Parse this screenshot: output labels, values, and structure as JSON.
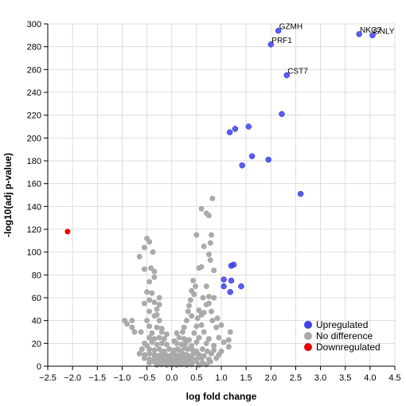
{
  "chart_data": {
    "type": "scatter",
    "xlabel": "log fold change",
    "ylabel": "-log10(adj p-value)",
    "xlim": [
      -2.5,
      4.5
    ],
    "ylim": [
      0,
      300
    ],
    "x_ticks": [
      "−2.5",
      "−2.0",
      "−1.5",
      "−1.0",
      "−0.5",
      "0.0",
      "0.5",
      "1.0",
      "1.5",
      "2.0",
      "2.5",
      "3.0",
      "3.5",
      "4.0",
      "4.5"
    ],
    "y_ticks": [
      "0",
      "20",
      "40",
      "60",
      "80",
      "100",
      "120",
      "140",
      "160",
      "180",
      "200",
      "220",
      "240",
      "260",
      "280",
      "300"
    ],
    "grid": true,
    "legend_position": "bottom-right",
    "colors": {
      "upregulated": "#4040ee",
      "no_difference": "#aaaaaa",
      "downregulated": "#ee0000"
    },
    "series": [
      {
        "name": "Upregulated",
        "color_key": "upregulated",
        "points": [
          [
            2.15,
            294
          ],
          [
            2.0,
            282
          ],
          [
            3.78,
            291
          ],
          [
            4.05,
            290
          ],
          [
            2.32,
            255
          ],
          [
            2.22,
            221
          ],
          [
            1.55,
            210
          ],
          [
            1.28,
            208
          ],
          [
            1.17,
            205
          ],
          [
            1.62,
            184
          ],
          [
            1.95,
            181
          ],
          [
            1.42,
            176
          ],
          [
            2.6,
            151
          ],
          [
            1.2,
            88
          ],
          [
            1.25,
            89
          ],
          [
            1.05,
            76
          ],
          [
            1.2,
            75
          ],
          [
            1.05,
            70
          ],
          [
            1.4,
            70
          ],
          [
            1.18,
            65
          ]
        ]
      },
      {
        "name": "No difference",
        "color_key": "no_difference",
        "points": [
          [
            0.82,
            147
          ],
          [
            0.6,
            138
          ],
          [
            0.7,
            134
          ],
          [
            0.75,
            132
          ],
          [
            -0.5,
            112
          ],
          [
            -0.45,
            109
          ],
          [
            0.5,
            115
          ],
          [
            0.8,
            115
          ],
          [
            -0.55,
            104
          ],
          [
            0.78,
            108
          ],
          [
            0.65,
            105
          ],
          [
            -0.38,
            100
          ],
          [
            -0.65,
            96
          ],
          [
            0.75,
            98
          ],
          [
            0.78,
            93
          ],
          [
            -0.42,
            86
          ],
          [
            -0.55,
            85
          ],
          [
            -0.35,
            83
          ],
          [
            0.6,
            87
          ],
          [
            0.55,
            86
          ],
          [
            0.85,
            84
          ],
          [
            -0.35,
            78
          ],
          [
            -0.45,
            74
          ],
          [
            0.43,
            75
          ],
          [
            0.48,
            70
          ],
          [
            0.7,
            70
          ],
          [
            0.4,
            66
          ],
          [
            -0.5,
            65
          ],
          [
            -0.4,
            64
          ],
          [
            0.45,
            63
          ],
          [
            -0.25,
            60
          ],
          [
            -0.45,
            58
          ],
          [
            0.63,
            60
          ],
          [
            0.75,
            61
          ],
          [
            0.85,
            60
          ],
          [
            0.38,
            58
          ],
          [
            -0.55,
            55
          ],
          [
            -0.35,
            56
          ],
          [
            -0.25,
            54
          ],
          [
            0.35,
            53
          ],
          [
            0.7,
            54
          ],
          [
            0.75,
            55
          ],
          [
            -0.3,
            50
          ],
          [
            -0.45,
            48
          ],
          [
            0.33,
            48
          ],
          [
            0.55,
            49
          ],
          [
            0.65,
            47
          ],
          [
            0.8,
            48
          ],
          [
            -0.35,
            44
          ],
          [
            -0.3,
            45
          ],
          [
            0.4,
            44
          ],
          [
            0.6,
            45
          ],
          [
            -0.8,
            40
          ],
          [
            -0.95,
            40
          ],
          [
            -0.9,
            37
          ],
          [
            -0.5,
            40
          ],
          [
            -0.25,
            40
          ],
          [
            0.3,
            40
          ],
          [
            0.52,
            42
          ],
          [
            0.82,
            40
          ],
          [
            0.92,
            42
          ],
          [
            -0.8,
            34
          ],
          [
            -0.45,
            35
          ],
          [
            -0.3,
            34
          ],
          [
            -0.2,
            33
          ],
          [
            0.25,
            34
          ],
          [
            0.5,
            35
          ],
          [
            0.6,
            36
          ],
          [
            0.9,
            34
          ],
          [
            1.0,
            36
          ],
          [
            -0.75,
            30
          ],
          [
            -0.62,
            30
          ],
          [
            -0.4,
            29
          ],
          [
            -0.2,
            30
          ],
          [
            -0.1,
            28
          ],
          [
            0.1,
            29
          ],
          [
            0.22,
            30
          ],
          [
            0.45,
            29
          ],
          [
            0.65,
            30
          ],
          [
            1.18,
            30
          ],
          [
            -0.45,
            25
          ],
          [
            -0.35,
            24
          ],
          [
            -0.25,
            25
          ],
          [
            -0.15,
            24
          ],
          [
            0.15,
            25
          ],
          [
            0.25,
            24
          ],
          [
            0.35,
            23
          ],
          [
            0.55,
            25
          ],
          [
            0.75,
            24
          ],
          [
            0.95,
            25
          ],
          [
            1.15,
            23
          ],
          [
            -0.55,
            20
          ],
          [
            -0.5,
            18
          ],
          [
            -0.4,
            21
          ],
          [
            -0.3,
            19
          ],
          [
            -0.2,
            20
          ],
          [
            -0.1,
            19
          ],
          [
            0.05,
            22
          ],
          [
            0.1,
            20
          ],
          [
            0.2,
            19
          ],
          [
            0.28,
            20
          ],
          [
            0.4,
            18
          ],
          [
            0.5,
            21
          ],
          [
            0.7,
            20
          ],
          [
            0.85,
            18
          ],
          [
            1.05,
            21
          ],
          [
            1.15,
            17
          ],
          [
            -0.6,
            15
          ],
          [
            -0.45,
            15
          ],
          [
            -0.35,
            14
          ],
          [
            -0.25,
            15
          ],
          [
            -0.15,
            13
          ],
          [
            -0.05,
            15
          ],
          [
            0.05,
            14
          ],
          [
            0.12,
            15
          ],
          [
            0.18,
            13
          ],
          [
            0.25,
            16
          ],
          [
            0.32,
            15
          ],
          [
            0.42,
            14
          ],
          [
            0.5,
            13
          ],
          [
            0.62,
            15
          ],
          [
            0.72,
            13
          ],
          [
            0.85,
            14
          ],
          [
            1.0,
            13
          ],
          [
            -0.65,
            11
          ],
          [
            -0.55,
            10
          ],
          [
            -0.45,
            11
          ],
          [
            -0.35,
            10
          ],
          [
            -0.28,
            9
          ],
          [
            -0.2,
            11
          ],
          [
            -0.12,
            10
          ],
          [
            -0.05,
            9
          ],
          [
            0.02,
            11
          ],
          [
            0.08,
            10
          ],
          [
            0.15,
            9
          ],
          [
            0.22,
            11
          ],
          [
            0.3,
            10
          ],
          [
            0.38,
            9
          ],
          [
            0.45,
            11
          ],
          [
            0.55,
            10
          ],
          [
            0.65,
            9
          ],
          [
            0.8,
            11
          ],
          [
            0.95,
            10
          ],
          [
            -0.55,
            7
          ],
          [
            -0.45,
            6
          ],
          [
            -0.35,
            7
          ],
          [
            -0.25,
            6
          ],
          [
            -0.18,
            7
          ],
          [
            -0.1,
            6
          ],
          [
            -0.02,
            7
          ],
          [
            0.05,
            6
          ],
          [
            0.12,
            7
          ],
          [
            0.18,
            6
          ],
          [
            0.25,
            7
          ],
          [
            0.32,
            6
          ],
          [
            0.4,
            7
          ],
          [
            0.5,
            6
          ],
          [
            0.6,
            7
          ],
          [
            0.75,
            6
          ],
          [
            0.9,
            7
          ],
          [
            -0.45,
            3
          ],
          [
            -0.35,
            4
          ],
          [
            -0.25,
            3
          ],
          [
            -0.15,
            4
          ],
          [
            -0.08,
            3
          ],
          [
            0.0,
            4
          ],
          [
            0.08,
            3
          ],
          [
            0.15,
            4
          ],
          [
            0.22,
            3
          ],
          [
            0.3,
            4
          ],
          [
            0.4,
            3
          ],
          [
            0.5,
            4
          ],
          [
            0.62,
            3
          ],
          [
            0.78,
            4
          ],
          [
            -0.3,
            1
          ],
          [
            -0.2,
            1.5
          ],
          [
            -0.1,
            1
          ],
          [
            0.0,
            1.5
          ],
          [
            0.1,
            1
          ],
          [
            0.2,
            1.5
          ],
          [
            0.3,
            1
          ],
          [
            0.4,
            1.5
          ],
          [
            0.55,
            1
          ],
          [
            0.7,
            1.5
          ]
        ]
      },
      {
        "name": "Downregulated",
        "color_key": "downregulated",
        "points": [
          [
            -2.1,
            118
          ]
        ]
      }
    ],
    "annotations": [
      {
        "text": "GZMH",
        "x": 2.15,
        "y": 294
      },
      {
        "text": "PRF1",
        "x": 2.0,
        "y": 282
      },
      {
        "text": "NKG7",
        "x": 3.78,
        "y": 291
      },
      {
        "text": "GNLY",
        "x": 4.05,
        "y": 290
      },
      {
        "text": "CST7",
        "x": 2.32,
        "y": 255
      }
    ],
    "legend": [
      {
        "label": "Upregulated",
        "color_key": "upregulated"
      },
      {
        "label": "No difference",
        "color_key": "no_difference"
      },
      {
        "label": "Downregulated",
        "color_key": "downregulated"
      }
    ]
  }
}
